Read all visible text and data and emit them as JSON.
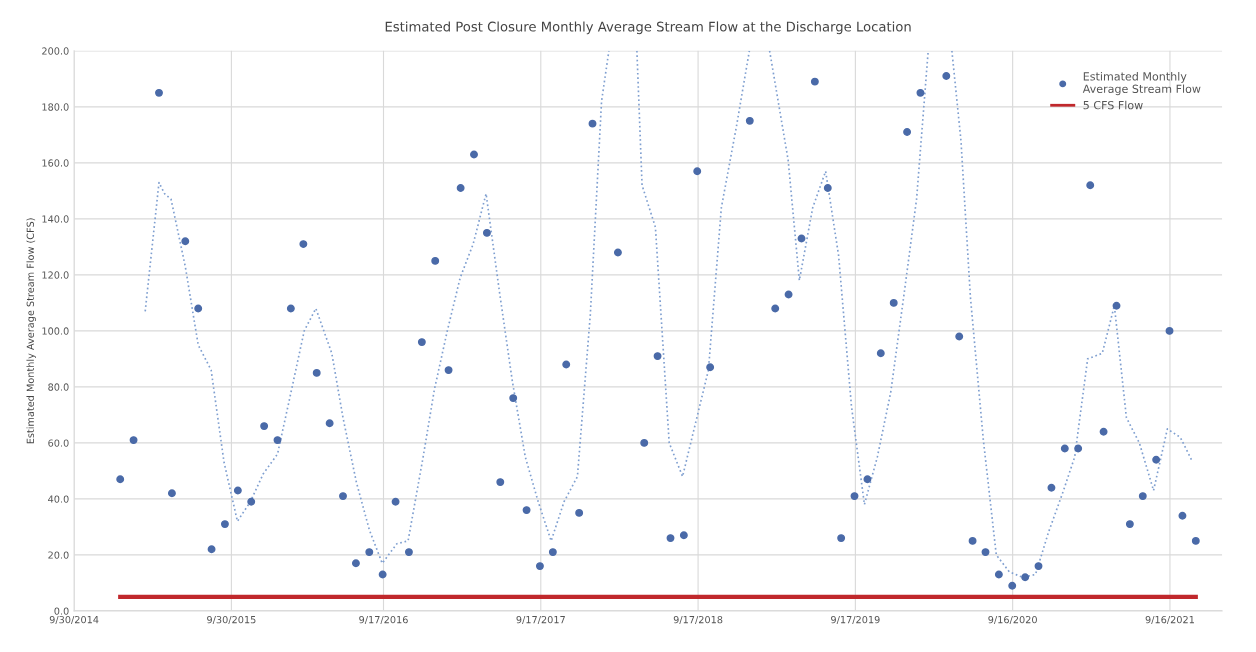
{
  "chart_data": {
    "type": "scatter",
    "title": "Estimated Post Closure Monthly Average Stream Flow at the Discharge Location",
    "ylabel": "Estimated Monthly Average Stream Flow (CFS)",
    "ylim": [
      0,
      200
    ],
    "yticks": [
      {
        "value": 0,
        "label": "0.0"
      },
      {
        "value": 20,
        "label": "20.0"
      },
      {
        "value": 40,
        "label": "40.0"
      },
      {
        "value": 60,
        "label": "60.0"
      },
      {
        "value": 80,
        "label": "80.0"
      },
      {
        "value": 100,
        "label": "100.0"
      },
      {
        "value": 120,
        "label": "120.0"
      },
      {
        "value": 140,
        "label": "140.0"
      },
      {
        "value": 160,
        "label": "160.0"
      },
      {
        "value": 180,
        "label": "180.0"
      },
      {
        "value": 200,
        "label": "200.0"
      }
    ],
    "xlim": [
      "2014-09-30",
      "2022-01-15"
    ],
    "xticks": [
      {
        "value": "2014-09-30",
        "label": "9/30/2014"
      },
      {
        "value": "2015-09-30",
        "label": "9/30/2015"
      },
      {
        "value": "2016-09-17",
        "label": "9/17/2016"
      },
      {
        "value": "2017-09-17",
        "label": "9/17/2017"
      },
      {
        "value": "2018-09-17",
        "label": "9/17/2018"
      },
      {
        "value": "2019-09-17",
        "label": "9/17/2019"
      },
      {
        "value": "2020-09-16",
        "label": "9/16/2020"
      },
      {
        "value": "2021-09-16",
        "label": "9/16/2021"
      }
    ],
    "grid": true,
    "legend": "top right",
    "series": [
      {
        "name": "Estimated Monthly\nAverage Stream Flow",
        "color": "#4a6aa8",
        "marker": "circle",
        "x": [
          "2015-01-15",
          "2015-02-15",
          "2015-03-15",
          "2015-04-15",
          "2015-05-15",
          "2015-06-15",
          "2015-07-15",
          "2015-08-15",
          "2015-09-15",
          "2015-10-15",
          "2015-11-15",
          "2015-12-15",
          "2016-01-15",
          "2016-02-15",
          "2016-03-15",
          "2016-04-15",
          "2016-05-15",
          "2016-06-15",
          "2016-07-15",
          "2016-08-15",
          "2016-09-15",
          "2016-10-15",
          "2016-11-15",
          "2016-12-15",
          "2017-01-15",
          "2017-02-15",
          "2017-03-15",
          "2017-04-15",
          "2017-05-15",
          "2017-06-15",
          "2017-07-15",
          "2017-08-15",
          "2017-09-15",
          "2017-10-15",
          "2017-11-15",
          "2017-12-15",
          "2018-01-15",
          "2018-02-15",
          "2018-03-15",
          "2018-04-15",
          "2018-05-15",
          "2018-06-15",
          "2018-07-15",
          "2018-08-15",
          "2018-09-15",
          "2018-10-15",
          "2018-11-15",
          "2018-12-15",
          "2019-01-15",
          "2019-02-15",
          "2019-03-15",
          "2019-04-15",
          "2019-05-15",
          "2019-06-15",
          "2019-07-15",
          "2019-08-15",
          "2019-09-15",
          "2019-10-15",
          "2019-11-15",
          "2019-12-15",
          "2020-01-15",
          "2020-02-15",
          "2020-03-15",
          "2020-04-15",
          "2020-05-15",
          "2020-06-15",
          "2020-07-15",
          "2020-08-15",
          "2020-09-15",
          "2020-10-15",
          "2020-11-15",
          "2020-12-15",
          "2021-01-15",
          "2021-02-15",
          "2021-03-15",
          "2021-04-15",
          "2021-05-15",
          "2021-06-15",
          "2021-07-15",
          "2021-08-15",
          "2021-09-15",
          "2021-10-15",
          "2021-11-15"
        ],
        "values": [
          47,
          61,
          null,
          185,
          42,
          132,
          108,
          22,
          31,
          43,
          39,
          66,
          61,
          108,
          131,
          85,
          67,
          41,
          17,
          21,
          13,
          39,
          21,
          96,
          125,
          86,
          151,
          163,
          135,
          46,
          76,
          36,
          16,
          21,
          88,
          35,
          174,
          null,
          128,
          null,
          60,
          91,
          26,
          27,
          157,
          87,
          null,
          null,
          175,
          null,
          108,
          113,
          133,
          189,
          151,
          26,
          41,
          47,
          92,
          110,
          171,
          185,
          null,
          191,
          98,
          25,
          21,
          13,
          9,
          12,
          16,
          44,
          58,
          58,
          152,
          64,
          109,
          31,
          41,
          54,
          100,
          34,
          25
        ]
      },
      {
        "type": "line",
        "color": "#c0282c",
        "line_style": "solid",
        "name": "5 CFS Flow",
        "x": [
          "2015-01-15",
          "2021-11-15"
        ],
        "values": [
          5,
          5
        ]
      },
      {
        "type": "line",
        "color": "#7f9fd0",
        "line_style": "dotted",
        "x": [
          "2015-03-14",
          "2015-04-15",
          "2015-04-28",
          "2015-05-13",
          "2015-06-15",
          "2015-07-15",
          "2015-08-14",
          "2015-09-13",
          "2015-10-14",
          "2015-11-13",
          "2015-12-13",
          "2016-01-15",
          "2016-02-11",
          "2016-03-17",
          "2016-04-13",
          "2016-05-20",
          "2016-06-15",
          "2016-07-16",
          "2016-08-15",
          "2016-09-14",
          "2016-10-18",
          "2016-11-13",
          "2016-12-18",
          "2017-01-13",
          "2017-02-12",
          "2017-03-14",
          "2017-04-13",
          "2017-05-13",
          "2017-06-13",
          "2017-07-13",
          "2017-08-12",
          "2017-09-11",
          "2017-10-11",
          "2017-11-10",
          "2017-12-11",
          "2018-01-10",
          "2018-02-05",
          "2018-02-22",
          "2018-03-25",
          "2018-04-28",
          "2018-05-10",
          "2018-06-10",
          "2018-07-12",
          "2018-08-12",
          "2018-09-11",
          "2018-10-11",
          "2018-11-10",
          "2018-12-15",
          "2019-01-14",
          "2019-02-05",
          "2019-03-02",
          "2019-04-14",
          "2019-05-10",
          "2019-06-10",
          "2019-07-10",
          "2019-08-09",
          "2019-09-08",
          "2019-10-08",
          "2019-11-07",
          "2019-12-08",
          "2020-01-07",
          "2020-02-06",
          "2020-03-04",
          "2020-04-01",
          "2020-04-28",
          "2020-05-19",
          "2020-06-10",
          "2020-07-10",
          "2020-08-09",
          "2020-09-08",
          "2020-10-09",
          "2020-11-08",
          "2020-12-08",
          "2021-01-12",
          "2021-02-07",
          "2021-03-09",
          "2021-04-12",
          "2021-05-10",
          "2021-06-07",
          "2021-07-07",
          "2021-08-09",
          "2021-09-10",
          "2021-10-10",
          "2021-11-05"
        ],
        "values": [
          107,
          153,
          149,
          147,
          123,
          95,
          86,
          53,
          32,
          39,
          49,
          56,
          75,
          100,
          108,
          92,
          69,
          46,
          29,
          17,
          24,
          25,
          55,
          79,
          100,
          119,
          131,
          149,
          114,
          82,
          55,
          39,
          25,
          39,
          48,
          106,
          182,
          200,
          null,
          200,
          152,
          137,
          60,
          48,
          67,
          86,
          144,
          173,
          200,
          null,
          200,
          161,
          118,
          144,
          157,
          127,
          73,
          38,
          55,
          78,
          112,
          147,
          200,
          null,
          200,
          168,
          112,
          61,
          20,
          14,
          12,
          13,
          28,
          43,
          55,
          90,
          92,
          109,
          69,
          60,
          43,
          65,
          62,
          54
        ]
      }
    ]
  }
}
